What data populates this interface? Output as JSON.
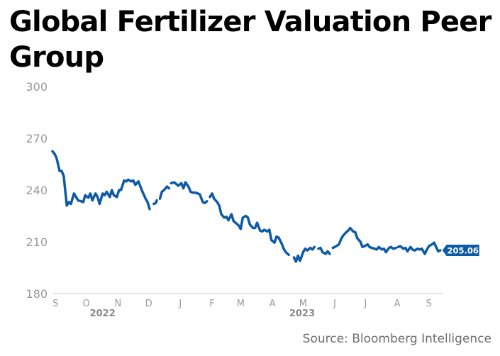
{
  "title": "Global Fertilizer Valuation Peer Group",
  "source": "Source: Bloomberg Intelligence",
  "colors": {
    "line": "#0d5aa7",
    "label_bg": "#0d5aa7",
    "label_text": "#ffffff",
    "tick_text": "#999999",
    "year_text": "#8a8a8a",
    "axis": "#cccccc"
  },
  "chart_data": {
    "type": "line",
    "title": "Global Fertilizer Valuation Peer Group",
    "xlabel": "",
    "ylabel": "",
    "ylim": [
      180,
      300
    ],
    "yticks": [
      300,
      270,
      240,
      210,
      180
    ],
    "xlim": [
      "2022-08-29",
      "2023-09-15"
    ],
    "xticks": [
      {
        "label": "S",
        "date": "2022-09-01"
      },
      {
        "label": "O",
        "date": "2022-10-01"
      },
      {
        "label": "N",
        "date": "2022-11-01"
      },
      {
        "label": "D",
        "date": "2022-12-01"
      },
      {
        "label": "J",
        "date": "2023-01-01"
      },
      {
        "label": "F",
        "date": "2023-02-01"
      },
      {
        "label": "M",
        "date": "2023-03-01"
      },
      {
        "label": "A",
        "date": "2023-04-01"
      },
      {
        "label": "M",
        "date": "2023-05-01"
      },
      {
        "label": "J",
        "date": "2023-06-01"
      },
      {
        "label": "J",
        "date": "2023-07-01"
      },
      {
        "label": "A",
        "date": "2023-08-01"
      },
      {
        "label": "S",
        "date": "2023-09-01"
      }
    ],
    "years": [
      {
        "label": "2022",
        "date": "2022-10-17"
      },
      {
        "label": "2023",
        "date": "2023-04-30"
      }
    ],
    "grid": false,
    "last_value_label": "205.06",
    "series": [
      {
        "segments": [
          [
            [
              "2022-08-29",
              262.5
            ],
            [
              "2022-08-31",
              261.0
            ],
            [
              "2022-09-02",
              258.5
            ],
            [
              "2022-09-05",
              251.0
            ],
            [
              "2022-09-07",
              251.0
            ],
            [
              "2022-09-09",
              248.0
            ],
            [
              "2022-09-12",
              231.0
            ],
            [
              "2022-09-14",
              233.0
            ],
            [
              "2022-09-16",
              232.0
            ],
            [
              "2022-09-19",
              238.0
            ],
            [
              "2022-09-21",
              236.0
            ],
            [
              "2022-09-23",
              234.0
            ],
            [
              "2022-09-26",
              233.5
            ],
            [
              "2022-09-28",
              233.0
            ],
            [
              "2022-09-30",
              237.0
            ],
            [
              "2022-10-03",
              235.5
            ],
            [
              "2022-10-05",
              238.0
            ],
            [
              "2022-10-07",
              234.0
            ],
            [
              "2022-10-10",
              238.0
            ],
            [
              "2022-10-12",
              236.0
            ],
            [
              "2022-10-14",
              232.0
            ],
            [
              "2022-10-17",
              238.0
            ],
            [
              "2022-10-19",
              237.0
            ],
            [
              "2022-10-21",
              239.0
            ],
            [
              "2022-10-24",
              236.0
            ],
            [
              "2022-10-26",
              240.0
            ],
            [
              "2022-10-28",
              237.0
            ],
            [
              "2022-10-31",
              236.0
            ],
            [
              "2022-11-02",
              240.0
            ],
            [
              "2022-11-04",
              240.0
            ],
            [
              "2022-11-07",
              245.5
            ],
            [
              "2022-11-09",
              245.0
            ],
            [
              "2022-11-11",
              246.0
            ],
            [
              "2022-11-14",
              245.0
            ],
            [
              "2022-11-16",
              245.5
            ],
            [
              "2022-11-18",
              243.0
            ],
            [
              "2022-11-21",
              245.0
            ],
            [
              "2022-11-23",
              242.0
            ],
            [
              "2022-11-25",
              239.0
            ],
            [
              "2022-11-28",
              235.0
            ],
            [
              "2022-11-30",
              233.0
            ],
            [
              "2022-12-02",
              229.0
            ]
          ],
          [
            [
              "2022-12-06",
              232.0
            ],
            [
              "2022-12-08",
              232.5
            ],
            [
              "2022-12-09",
              234.0
            ]
          ],
          [
            [
              "2022-12-12",
              235.0
            ],
            [
              "2022-12-14",
              239.0
            ],
            [
              "2022-12-16",
              240.0
            ],
            [
              "2022-12-19",
              242.0
            ],
            [
              "2022-12-21",
              241.0
            ]
          ],
          [
            [
              "2022-12-23",
              244.0
            ],
            [
              "2022-12-26",
              244.5
            ],
            [
              "2022-12-28",
              243.5
            ],
            [
              "2022-12-30",
              242.5
            ],
            [
              "2023-01-02",
              244.0
            ],
            [
              "2023-01-04",
              241.0
            ],
            [
              "2023-01-06",
              244.5
            ],
            [
              "2023-01-09",
              242.0
            ],
            [
              "2023-01-11",
              239.0
            ],
            [
              "2023-01-13",
              238.5
            ],
            [
              "2023-01-16",
              238.5
            ],
            [
              "2023-01-18",
              238.0
            ],
            [
              "2023-01-20",
              237.5
            ],
            [
              "2023-01-23",
              233.0
            ],
            [
              "2023-01-25",
              232.5
            ],
            [
              "2023-01-27",
              233.5
            ]
          ],
          [
            [
              "2023-01-30",
              236.0
            ],
            [
              "2023-02-01",
              238.0
            ],
            [
              "2023-02-03",
              235.0
            ],
            [
              "2023-02-06",
              233.0
            ],
            [
              "2023-02-08",
              231.0
            ],
            [
              "2023-02-10",
              226.0
            ],
            [
              "2023-02-13",
              224.0
            ],
            [
              "2023-02-15",
              224.5
            ],
            [
              "2023-02-17",
              222.5
            ],
            [
              "2023-02-20",
              226.0
            ],
            [
              "2023-02-22",
              222.0
            ],
            [
              "2023-02-24",
              221.0
            ],
            [
              "2023-02-27",
              219.5
            ],
            [
              "2023-03-01",
              217.5
            ],
            [
              "2023-03-03",
              224.0
            ],
            [
              "2023-03-06",
              225.0
            ],
            [
              "2023-03-08",
              224.0
            ],
            [
              "2023-03-10",
              220.0
            ],
            [
              "2023-03-13",
              218.0
            ],
            [
              "2023-03-15",
              218.0
            ],
            [
              "2023-03-17",
              221.0
            ],
            [
              "2023-03-20",
              216.5
            ],
            [
              "2023-03-22",
              216.0
            ],
            [
              "2023-03-24",
              217.0
            ],
            [
              "2023-03-27",
              216.0
            ],
            [
              "2023-03-29",
              217.0
            ],
            [
              "2023-03-31",
              211.0
            ],
            [
              "2023-04-03",
              209.5
            ],
            [
              "2023-04-05",
              213.0
            ],
            [
              "2023-04-07",
              212.5
            ],
            [
              "2023-04-10",
              209.0
            ],
            [
              "2023-04-12",
              206.0
            ],
            [
              "2023-04-14",
              204.0
            ],
            [
              "2023-04-17",
              202.5
            ]
          ],
          [
            [
              "2023-04-22",
              201.0
            ],
            [
              "2023-04-24",
              198.5
            ],
            [
              "2023-04-26",
              202.0
            ],
            [
              "2023-04-28",
              199.0
            ],
            [
              "2023-05-01",
              204.0
            ],
            [
              "2023-05-03",
              206.0
            ],
            [
              "2023-05-05",
              205.0
            ],
            [
              "2023-05-08",
              206.5
            ],
            [
              "2023-05-10",
              205.5
            ],
            [
              "2023-05-12",
              207.0
            ]
          ],
          [
            [
              "2023-05-16",
              206.0
            ],
            [
              "2023-05-18",
              206.5
            ],
            [
              "2023-05-20",
              204.0
            ],
            [
              "2023-05-23",
              203.0
            ],
            [
              "2023-05-25",
              204.5
            ],
            [
              "2023-05-27",
              203.0
            ]
          ],
          [
            [
              "2023-05-30",
              206.5
            ],
            [
              "2023-06-01",
              207.0
            ],
            [
              "2023-06-05",
              208.5
            ],
            [
              "2023-06-07",
              211.5
            ],
            [
              "2023-06-09",
              213.5
            ],
            [
              "2023-06-12",
              215.5
            ],
            [
              "2023-06-14",
              216.5
            ],
            [
              "2023-06-16",
              218.0
            ],
            [
              "2023-06-19",
              216.0
            ],
            [
              "2023-06-21",
              215.5
            ],
            [
              "2023-06-23",
              212.0
            ],
            [
              "2023-06-26",
              210.0
            ],
            [
              "2023-06-28",
              207.0
            ],
            [
              "2023-06-30",
              207.5
            ],
            [
              "2023-07-03",
              208.5
            ],
            [
              "2023-07-05",
              207.0
            ],
            [
              "2023-07-07",
              206.5
            ],
            [
              "2023-07-10",
              206.0
            ],
            [
              "2023-07-12",
              205.5
            ],
            [
              "2023-07-14",
              207.0
            ],
            [
              "2023-07-17",
              205.5
            ],
            [
              "2023-07-19",
              206.0
            ],
            [
              "2023-07-21",
              204.0
            ],
            [
              "2023-07-24",
              206.5
            ],
            [
              "2023-07-26",
              207.0
            ],
            [
              "2023-07-28",
              206.0
            ],
            [
              "2023-07-31",
              206.5
            ]
          ],
          [
            [
              "2023-08-02",
              207.0
            ],
            [
              "2023-08-04",
              207.5
            ],
            [
              "2023-08-07",
              206.0
            ],
            [
              "2023-08-09",
              206.5
            ],
            [
              "2023-08-11",
              204.5
            ],
            [
              "2023-08-14",
              207.0
            ],
            [
              "2023-08-16",
              205.5
            ],
            [
              "2023-08-18",
              205.0
            ],
            [
              "2023-08-21",
              206.0
            ],
            [
              "2023-08-23",
              205.5
            ],
            [
              "2023-08-25",
              206.0
            ],
            [
              "2023-08-28",
              203.0
            ],
            [
              "2023-08-30",
              205.5
            ],
            [
              "2023-09-01",
              207.5
            ],
            [
              "2023-09-04",
              208.5
            ],
            [
              "2023-09-06",
              209.5
            ],
            [
              "2023-09-08",
              207.0
            ],
            [
              "2023-09-10",
              204.5
            ],
            [
              "2023-09-12",
              205.06
            ]
          ]
        ]
      }
    ]
  }
}
